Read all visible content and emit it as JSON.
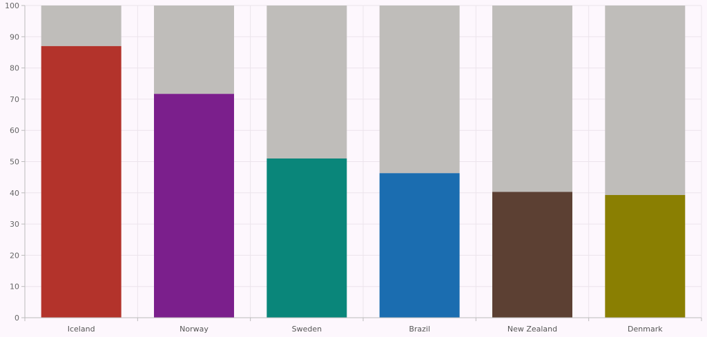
{
  "chart_data": {
    "type": "bar",
    "stacked": "to-100",
    "categories": [
      "Iceland",
      "Norway",
      "Sweden",
      "Brazil",
      "New Zealand",
      "Denmark"
    ],
    "values": [
      87,
      71.7,
      51,
      46.3,
      40.3,
      39.3
    ],
    "remainder_color": "#bfbdba",
    "bar_colors": [
      "#b3332b",
      "#7b1f8c",
      "#0a867a",
      "#1b6db0",
      "#5c4033",
      "#8a7f02"
    ],
    "ylim": [
      0,
      100
    ],
    "yticks": [
      0,
      10,
      20,
      30,
      40,
      50,
      60,
      70,
      80,
      90,
      100
    ],
    "grid": true,
    "title": "",
    "xlabel": "",
    "ylabel": ""
  }
}
